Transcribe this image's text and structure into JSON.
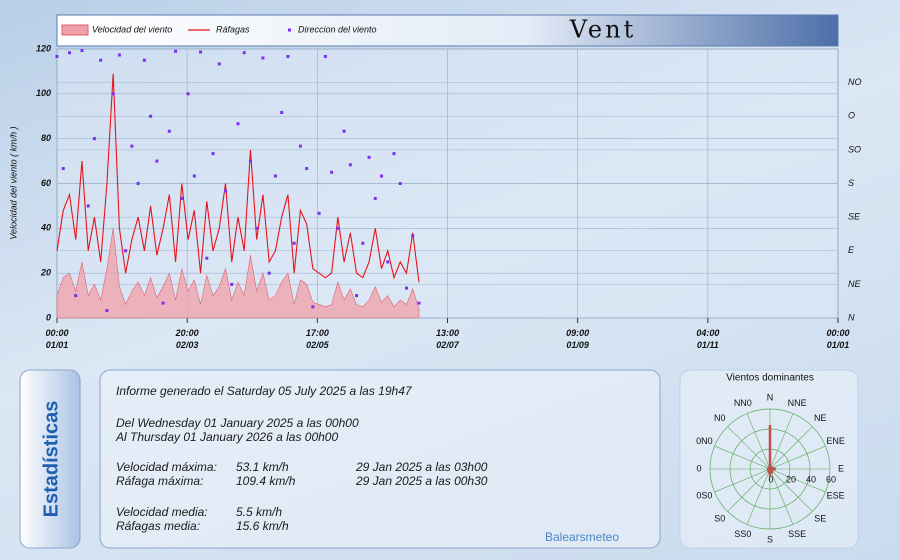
{
  "chart_data": [
    {
      "type": "line",
      "title": "Vent",
      "ylabel": "Velocidad del viento ( km/h )",
      "x": [
        0,
        70,
        140,
        210,
        280,
        350,
        420,
        490,
        560,
        630,
        700,
        770,
        840,
        910,
        980,
        1050,
        1120,
        1190,
        1260,
        1330,
        1400,
        1470,
        1540,
        1610,
        1680,
        1750,
        1820,
        1890,
        1960,
        2030,
        2100,
        2170,
        2240,
        2310,
        2380,
        2450,
        2520,
        2590,
        2660,
        2730,
        2800,
        2870,
        2940,
        3010,
        3080,
        3150,
        3220,
        3290,
        3360,
        3430,
        3500,
        3570,
        3640,
        3710,
        3780,
        3850,
        3920,
        3990,
        4060
      ],
      "xlim": [
        0,
        8760
      ],
      "xticks": [
        {
          "value": 0,
          "label": "00:00\n01/01"
        },
        {
          "value": 1460,
          "label": "20:00\n02/03"
        },
        {
          "value": 2920,
          "label": "17:00\n02/05"
        },
        {
          "value": 4380,
          "label": "13:00\n02/07"
        },
        {
          "value": 5840,
          "label": "09:00\n01/09"
        },
        {
          "value": 7300,
          "label": "04:00\n01/11"
        },
        {
          "value": 8760,
          "label": "00:00\n01/01"
        }
      ],
      "ylim": [
        0,
        120
      ],
      "yticks": [
        0,
        20,
        40,
        60,
        80,
        100,
        120
      ],
      "y2lim": [
        0,
        360
      ],
      "y2ticks": [
        {
          "value": 0,
          "label": "N"
        },
        {
          "value": 45,
          "label": "NE"
        },
        {
          "value": 90,
          "label": "E"
        },
        {
          "value": 135,
          "label": "SE"
        },
        {
          "value": 180,
          "label": "S"
        },
        {
          "value": 225,
          "label": "SO"
        },
        {
          "value": 270,
          "label": "O"
        },
        {
          "value": 315,
          "label": "NO"
        }
      ],
      "grid": true,
      "series": [
        {
          "name": "Velocidad del viento",
          "kind": "area",
          "color": "#f0a0a8",
          "values": [
            10,
            18,
            20,
            12,
            25,
            10,
            15,
            8,
            22,
            40,
            14,
            6,
            12,
            16,
            10,
            18,
            9,
            14,
            20,
            8,
            22,
            12,
            17,
            6,
            19,
            10,
            14,
            22,
            8,
            16,
            10,
            28,
            12,
            20,
            8,
            10,
            16,
            20,
            6,
            17,
            15,
            7,
            6,
            5,
            6,
            16,
            8,
            13,
            6,
            5,
            8,
            14,
            7,
            10,
            5,
            8,
            6,
            13,
            4
          ]
        },
        {
          "name": "Ráfagas",
          "kind": "line",
          "color": "#e8131b",
          "values": [
            30,
            48,
            55,
            35,
            70,
            30,
            45,
            25,
            60,
            109,
            40,
            20,
            35,
            45,
            30,
            50,
            28,
            40,
            55,
            25,
            60,
            35,
            48,
            20,
            52,
            30,
            40,
            60,
            25,
            45,
            30,
            75,
            35,
            55,
            25,
            30,
            45,
            55,
            20,
            48,
            42,
            22,
            20,
            18,
            20,
            45,
            25,
            38,
            20,
            18,
            25,
            40,
            22,
            30,
            18,
            25,
            20,
            38,
            16
          ]
        },
        {
          "name": "Direccion del viento",
          "kind": "scatter",
          "axis": "y2",
          "color": "#7b2ff0",
          "values": [
            350,
            200,
            355,
            30,
            358,
            150,
            240,
            345,
            10,
            300,
            352,
            90,
            230,
            180,
            345,
            270,
            210,
            20,
            250,
            357,
            160,
            300,
            190,
            356,
            80,
            220,
            340,
            170,
            45,
            260,
            355,
            210,
            120,
            348,
            60,
            190,
            275,
            350,
            100,
            230,
            200,
            15,
            140,
            350,
            195,
            120,
            250,
            205,
            30,
            100,
            215,
            160,
            190,
            75,
            220,
            180,
            40,
            110,
            20
          ]
        }
      ]
    },
    {
      "type": "polar",
      "title": "Vientos dominantes",
      "color": "#c0504d",
      "categories": [
        "N",
        "NNE",
        "NE",
        "ENE",
        "E",
        "ESE",
        "SE",
        "SSE",
        "S",
        "SS0",
        "S0",
        "0S0",
        "0",
        "0N0",
        "N0",
        "NN0"
      ],
      "values": [
        44,
        3,
        2,
        4,
        6,
        3,
        4,
        5,
        8,
        4,
        3,
        2,
        3,
        2,
        2,
        3
      ],
      "rlim": [
        0,
        60
      ],
      "rticks": [
        0,
        20,
        40,
        60
      ]
    }
  ],
  "stats": {
    "tab": "Estadísticas",
    "generated": "Informe generado el Saturday 05 July 2025 a las 19h47",
    "from": "Del Wednesday 01 January 2025 a las 00h00",
    "to": "Al Thursday 01 January 2026 a las 00h00",
    "rows": [
      [
        "Velocidad máxima:",
        "53.1 km/h",
        "29 Jan 2025 a las 03h00"
      ],
      [
        "Ráfaga máxima:",
        "109.4 km/h",
        "29 Jan 2025 a las 00h30"
      ],
      [
        "Velocidad media:",
        "5.5 km/h"
      ],
      [
        "Ráfagas media:",
        "15.6 km/h"
      ]
    ],
    "footer": "Balearsmeteo"
  }
}
